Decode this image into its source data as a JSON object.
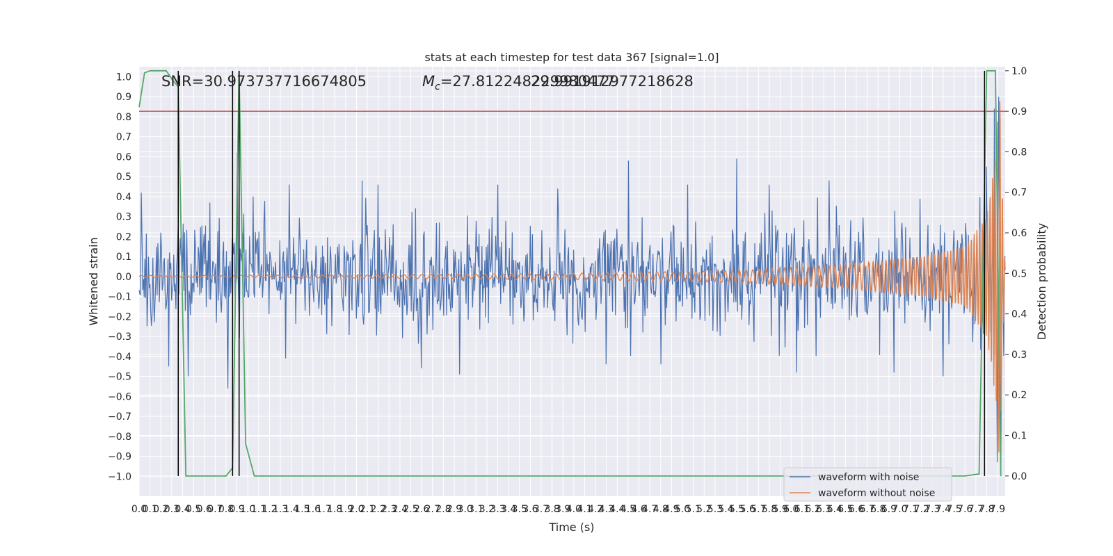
{
  "chart_data": {
    "type": "line",
    "title": "stats at each timestep for test data 367 [signal=1.0]",
    "xlabel": "Time (s)",
    "ylabel": "Whitened strain",
    "ylabel_right": "Detection probability",
    "xlim": [
      0.0,
      7.97
    ],
    "ylim": [
      -1.1,
      1.05
    ],
    "ylim_right": [
      -0.05,
      1.01
    ],
    "xticks": [
      0.0,
      0.1,
      0.2,
      0.3,
      0.4,
      0.5,
      0.6,
      0.7,
      0.8,
      0.9,
      1.0,
      1.1,
      1.2,
      1.3,
      1.4,
      1.5,
      1.6,
      1.7,
      1.8,
      1.9,
      2.0,
      2.1,
      2.2,
      2.3,
      2.4,
      2.5,
      2.6,
      2.7,
      2.8,
      2.9,
      3.0,
      3.1,
      3.2,
      3.3,
      3.4,
      3.5,
      3.6,
      3.7,
      3.8,
      3.9,
      4.0,
      4.1,
      4.2,
      4.3,
      4.4,
      4.5,
      4.6,
      4.7,
      4.8,
      4.9,
      5.0,
      5.1,
      5.2,
      5.3,
      5.4,
      5.5,
      5.6,
      5.7,
      5.8,
      5.9,
      6.0,
      6.1,
      6.2,
      6.3,
      6.4,
      6.5,
      6.6,
      6.7,
      6.8,
      6.9,
      7.0,
      7.1,
      7.2,
      7.3,
      7.4,
      7.5,
      7.6,
      7.7,
      7.8,
      7.9
    ],
    "xtick_labels": [
      "0.0",
      "0.1",
      "0.2",
      "0.3",
      "0.4",
      "0.5",
      "0.6",
      "0.7",
      "0.8",
      "0.9",
      "1.0",
      "1.1",
      "1.2",
      "1.3",
      "1.4",
      "1.5",
      "1.6",
      "1.7",
      "1.8",
      "1.9",
      "2.0",
      "2.1",
      "2.2",
      "2.3",
      "2.4",
      "2.5",
      "2.6",
      "2.7",
      "2.8",
      "2.9",
      "3.0",
      "3.1",
      "3.2",
      "3.3",
      "3.4",
      "3.5",
      "3.6",
      "3.7",
      "3.8",
      "3.9",
      "4.0",
      "4.1",
      "4.2",
      "4.3",
      "4.4",
      "4.5",
      "4.6",
      "4.7",
      "4.8",
      "4.9",
      "5.0",
      "5.1",
      "5.2",
      "5.3",
      "5.4",
      "5.5",
      "5.6",
      "5.7",
      "5.8",
      "5.9",
      "6.0",
      "6.1",
      "6.2",
      "6.3",
      "6.4",
      "6.5",
      "6.6",
      "6.7",
      "6.8",
      "6.9",
      "7.0",
      "7.1",
      "7.2",
      "7.3",
      "7.4",
      "7.5",
      "7.6",
      "7.7",
      "7.8",
      "7.9"
    ],
    "yticks": [
      -1.0,
      -0.9,
      -0.8,
      -0.7,
      -0.6,
      -0.5,
      -0.4,
      -0.3,
      -0.2,
      -0.1,
      0.0,
      0.1,
      0.2,
      0.3,
      0.4,
      0.5,
      0.6,
      0.7,
      0.8,
      0.9,
      1.0
    ],
    "ytick_labels": [
      "−1.0",
      "−0.9",
      "−0.8",
      "−0.7",
      "−0.6",
      "−0.5",
      "−0.4",
      "−0.3",
      "−0.2",
      "−0.1",
      "0.0",
      "0.1",
      "0.2",
      "0.3",
      "0.4",
      "0.5",
      "0.6",
      "0.7",
      "0.8",
      "0.9",
      "1.0"
    ],
    "yticks_right": [
      0.0,
      0.1,
      0.2,
      0.3,
      0.4,
      0.5,
      0.6,
      0.7,
      0.8,
      0.9,
      1.0
    ],
    "ytick_labels_right": [
      "0.0",
      "0.1",
      "0.2",
      "0.3",
      "0.4",
      "0.5",
      "0.6",
      "0.7",
      "0.8",
      "0.9",
      "1.0"
    ],
    "grid": true,
    "legend_position": "bottom-right",
    "annotations": {
      "snr": "SNR=30.973737716674805",
      "mc_symbol": "M",
      "mc_subscript": "c",
      "mc_value": "=27.812248229980477",
      "mc_overlap": "29.991912977218628"
    },
    "noise_series": {
      "name": "waveform with noise",
      "color": "#4c72b0",
      "x_start": 0.0,
      "x_end": 7.97,
      "sample_count": 1200,
      "noise_sigma": 0.13,
      "spikes": [
        {
          "x": 0.02,
          "y": 0.42
        },
        {
          "x": 0.27,
          "y": -0.45
        },
        {
          "x": 0.45,
          "y": -0.5
        },
        {
          "x": 0.65,
          "y": 0.37
        },
        {
          "x": 0.82,
          "y": -0.56
        },
        {
          "x": 0.9,
          "y": 0.62
        },
        {
          "x": 1.05,
          "y": 0.4
        },
        {
          "x": 1.35,
          "y": -0.41
        },
        {
          "x": 1.38,
          "y": 0.46
        },
        {
          "x": 2.05,
          "y": 0.48
        },
        {
          "x": 2.2,
          "y": 0.46
        },
        {
          "x": 2.6,
          "y": -0.46
        },
        {
          "x": 2.95,
          "y": -0.49
        },
        {
          "x": 3.3,
          "y": 0.46
        },
        {
          "x": 3.85,
          "y": 0.44
        },
        {
          "x": 4.3,
          "y": -0.44
        },
        {
          "x": 4.5,
          "y": 0.58
        },
        {
          "x": 4.8,
          "y": -0.44
        },
        {
          "x": 5.05,
          "y": 0.46
        },
        {
          "x": 5.5,
          "y": 0.59
        },
        {
          "x": 5.8,
          "y": 0.46
        },
        {
          "x": 6.05,
          "y": -0.48
        },
        {
          "x": 6.35,
          "y": 0.48
        },
        {
          "x": 6.95,
          "y": -0.48
        },
        {
          "x": 7.4,
          "y": -0.5
        },
        {
          "x": 7.8,
          "y": 0.55
        },
        {
          "x": 7.87,
          "y": 0.84
        },
        {
          "x": 7.9,
          "y": -0.93
        },
        {
          "x": 7.91,
          "y": 0.9
        },
        {
          "x": 7.93,
          "y": -1.0
        }
      ]
    },
    "clean_series": {
      "name": "waveform without noise",
      "color": "#dd8452",
      "x_start": 0.0,
      "x_end": 7.97,
      "f0_hz": 12,
      "f1_hz": 45,
      "merger_time": 7.93,
      "amplitudes": [
        {
          "x": 0.0,
          "a": 0.005
        },
        {
          "x": 2.0,
          "a": 0.008
        },
        {
          "x": 4.0,
          "a": 0.016
        },
        {
          "x": 5.5,
          "a": 0.03
        },
        {
          "x": 6.5,
          "a": 0.06
        },
        {
          "x": 7.2,
          "a": 0.1
        },
        {
          "x": 7.6,
          "a": 0.15
        },
        {
          "x": 7.8,
          "a": 0.3
        },
        {
          "x": 7.88,
          "a": 0.6
        },
        {
          "x": 7.92,
          "a": 0.97
        },
        {
          "x": 7.95,
          "a": 0.3
        },
        {
          "x": 7.97,
          "a": 0.05
        }
      ]
    },
    "probability_series": {
      "color": "#55a868",
      "points": [
        {
          "x": 0.0,
          "p": 0.91
        },
        {
          "x": 0.05,
          "p": 0.995
        },
        {
          "x": 0.1,
          "p": 1.0
        },
        {
          "x": 0.15,
          "p": 1.0
        },
        {
          "x": 0.2,
          "p": 1.0
        },
        {
          "x": 0.25,
          "p": 1.0
        },
        {
          "x": 0.3,
          "p": 0.98
        },
        {
          "x": 0.36,
          "p": 0.96
        },
        {
          "x": 0.43,
          "p": 0.0
        },
        {
          "x": 0.5,
          "p": 0.0
        },
        {
          "x": 0.6,
          "p": 0.0
        },
        {
          "x": 0.7,
          "p": 0.0
        },
        {
          "x": 0.8,
          "p": 0.0
        },
        {
          "x": 0.86,
          "p": 0.02
        },
        {
          "x": 0.92,
          "p": 1.0
        },
        {
          "x": 0.98,
          "p": 0.08
        },
        {
          "x": 1.06,
          "p": 0.0
        },
        {
          "x": 2.0,
          "p": 0.0
        },
        {
          "x": 4.0,
          "p": 0.0
        },
        {
          "x": 6.0,
          "p": 0.0
        },
        {
          "x": 7.6,
          "p": 0.0
        },
        {
          "x": 7.73,
          "p": 0.005
        },
        {
          "x": 7.8,
          "p": 1.0
        },
        {
          "x": 7.88,
          "p": 1.0
        },
        {
          "x": 7.93,
          "p": 0.0
        }
      ]
    },
    "threshold": {
      "p": 0.9,
      "color": "#c44e52"
    },
    "vertical_markers": {
      "color": "#000000",
      "x": [
        0.36,
        0.86,
        0.92,
        7.78
      ],
      "p_range": [
        0.0,
        1.0
      ]
    },
    "legend": [
      {
        "label": "waveform with noise",
        "color": "#4c72b0"
      },
      {
        "label": "waveform without noise",
        "color": "#dd8452"
      }
    ]
  }
}
